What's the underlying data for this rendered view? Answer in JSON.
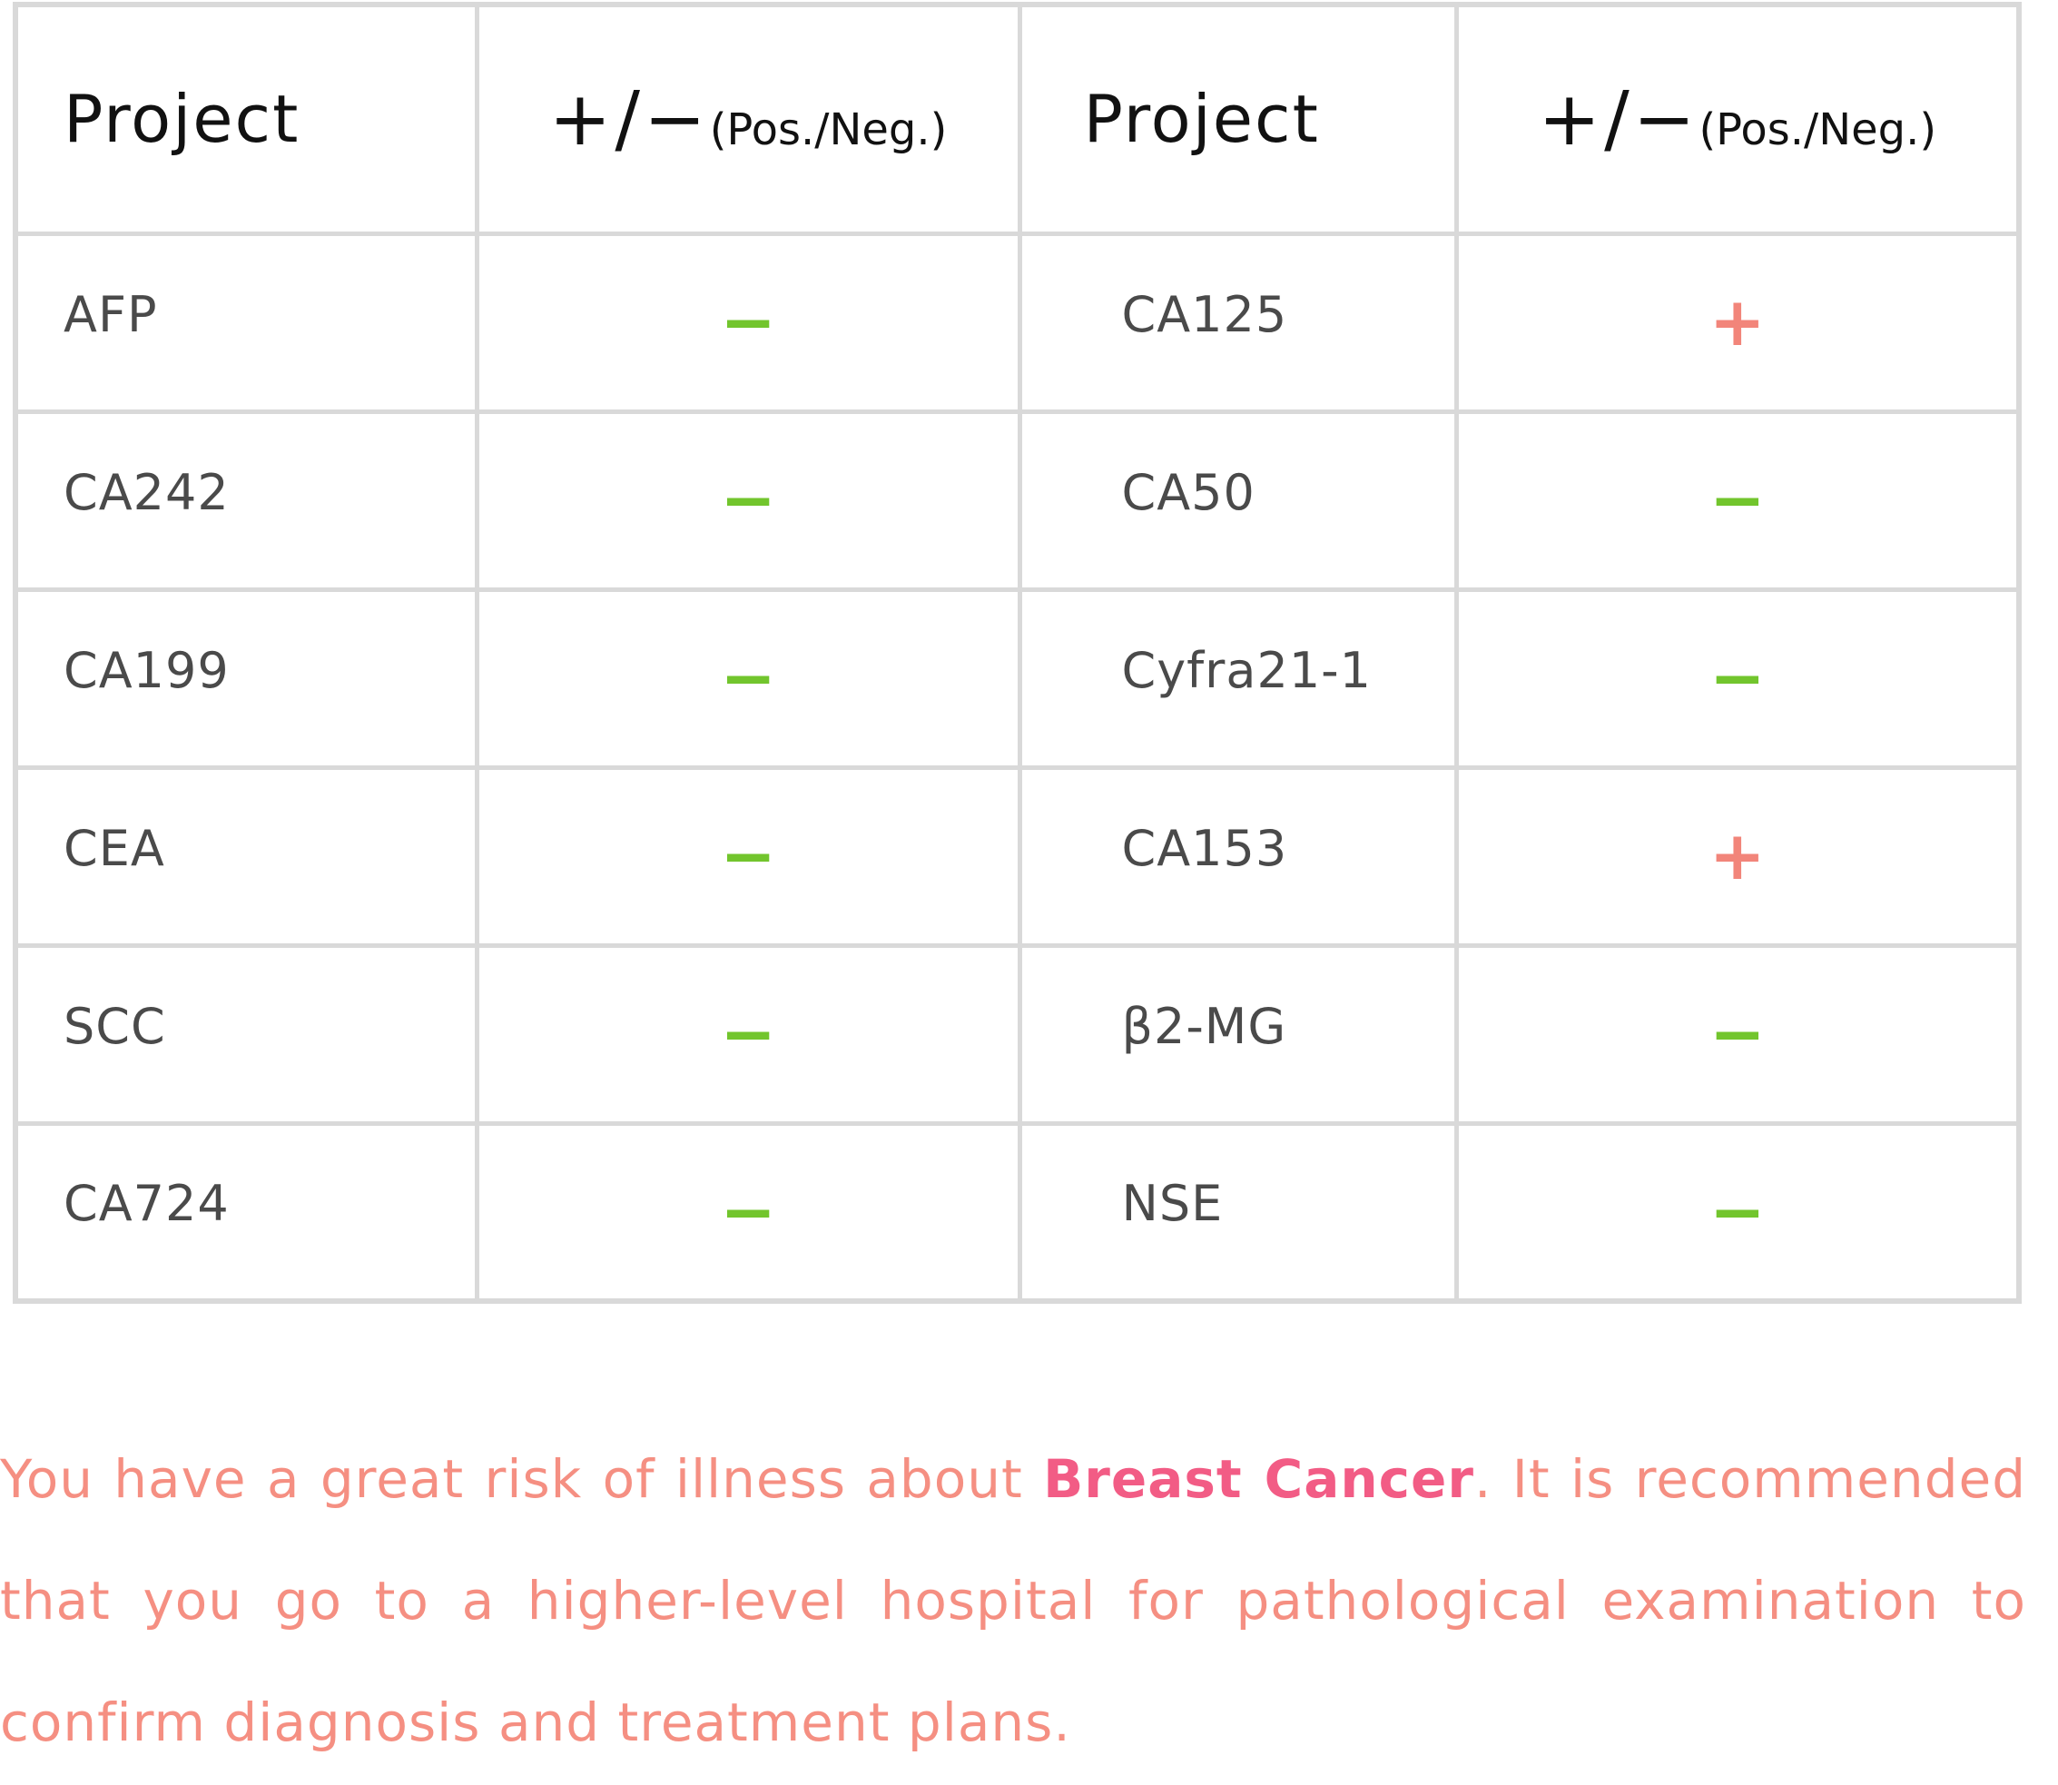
{
  "table": {
    "headers": {
      "project_left": "Project",
      "sign_left_symbols": "+/−",
      "sign_left_note": "(Pos./Neg.)",
      "project_right": "Project",
      "sign_right_symbols": "+/−",
      "sign_right_note": "(Pos./Neg.)"
    },
    "rows": [
      {
        "left_name": "AFP",
        "left_result": "−",
        "right_name": "CA125",
        "right_result": "+"
      },
      {
        "left_name": "CA242",
        "left_result": "−",
        "right_name": "CA50",
        "right_result": "−"
      },
      {
        "left_name": "CA199",
        "left_result": "−",
        "right_name": "Cyfra21-1",
        "right_result": "−"
      },
      {
        "left_name": "CEA",
        "left_result": "−",
        "right_name": "CA153",
        "right_result": "+"
      },
      {
        "left_name": "SCC",
        "left_result": "−",
        "right_name": "β2-MG",
        "right_result": "−"
      },
      {
        "left_name": "CA724",
        "left_result": "−",
        "right_name": "NSE",
        "right_result": "−"
      }
    ]
  },
  "recommendation": {
    "before": "You have a great risk of illness about ",
    "highlight": "Breast Cancer",
    "after": ". It is recommended that you go to a higher-level hospital for pathological examination to confirm diagnosis and treatment plans."
  },
  "colors": {
    "negative": "#72c52d",
    "positive": "#f2857a",
    "recommendation_text": "#f58f82",
    "highlight": "#f25c85",
    "grid": "#d9d9d9"
  }
}
